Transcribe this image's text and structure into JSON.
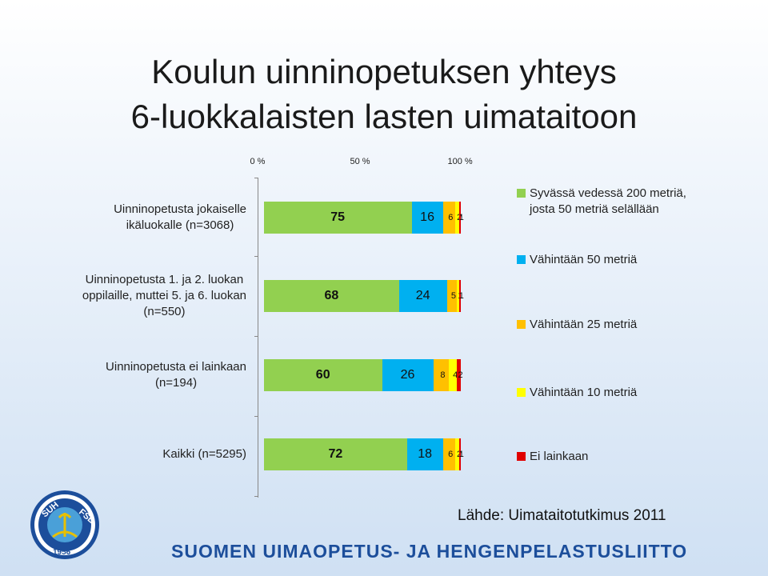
{
  "title": {
    "line1": "Koulun uinninopetuksen yhteys",
    "line2": "6-luokkalaisten lasten uimataitoon"
  },
  "chart_data": {
    "type": "bar",
    "stacked": true,
    "orientation": "horizontal",
    "percent_axis": true,
    "x_ticks": [
      "0 %",
      "50 %",
      "100 %"
    ],
    "xlim": [
      0,
      100
    ],
    "categories": [
      [
        "Uinninopetusta jokaiselle",
        "ikäluokalle (n=3068)"
      ],
      [
        "Uinninopetusta 1. ja 2. luokan",
        "oppilaille, muttei 5. ja 6. luokan",
        "(n=550)"
      ],
      [
        "Uinninopetusta ei lainkaan",
        "(n=194)"
      ],
      [
        "Kaikki (n=5295)"
      ]
    ],
    "series": [
      {
        "name": "Syvässä vedessä 200 metriä, josta 50 metriä selällään",
        "color": "#92d050",
        "values": [
          75,
          68,
          60,
          72
        ],
        "bold_labels": [
          true,
          true,
          true,
          true
        ]
      },
      {
        "name": "Vähintään 50 metriä",
        "color": "#00b0f0",
        "values": [
          16,
          24,
          26,
          18
        ]
      },
      {
        "name": "Vähintään 25 metriä",
        "color": "#ffc000",
        "values": [
          6,
          5,
          8,
          6
        ]
      },
      {
        "name": "Vähintään 10 metriä",
        "color": "#ffff00",
        "values": [
          2,
          1,
          4,
          2
        ]
      },
      {
        "name": "Ei lainkaan",
        "color": "#e00000",
        "values": [
          1,
          1,
          2,
          1
        ]
      }
    ],
    "legend": [
      [
        "Syvässä vedessä 200 metriä,",
        "josta 50 metriä selällään"
      ],
      [
        "Vähintään 50 metriä"
      ],
      [
        "Vähintään 25 metriä"
      ],
      [
        "Vähintään 10 metriä"
      ],
      [
        "Ei lainkaan"
      ]
    ],
    "legend_position": "right"
  },
  "source": "Lähde: Uimataitotutkimus 2011",
  "organization": "SUOMEN UIMAOPETUS- JA HENGENPELASTUSLIITTO",
  "logo": {
    "text_top": "SUH",
    "text_right": "FSL",
    "year": "1956"
  }
}
